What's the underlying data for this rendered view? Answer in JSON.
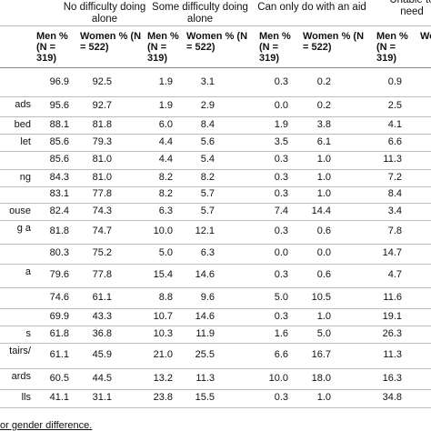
{
  "table": {
    "groups": [
      "No difficulty doing alone",
      "Some difficulty doing alone",
      "Can only do with an aid",
      "Unable to\nneed"
    ],
    "subheaders": [
      "Men % (N = 319)",
      "Women % (N = 522)",
      "Men % (N = 319)",
      "Women % (N = 522)",
      "Men % (N = 319)",
      "Women % (N = 522)",
      "Men % (N = 319)",
      "Wo"
    ],
    "rows": [
      {
        "label": "",
        "cells": [
          "96.9",
          "92.5",
          "1.9",
          "3.1",
          "0.3",
          "0.2",
          "0.9"
        ]
      },
      {
        "label": "ads",
        "cells": [
          "95.6",
          "92.7",
          "1.9",
          "2.9",
          "0.0",
          "0.2",
          "2.5"
        ]
      },
      {
        "label": "bed",
        "cells": [
          "88.1",
          "81.8",
          "6.0",
          "8.4",
          "1.9",
          "3.8",
          "4.1"
        ]
      },
      {
        "label": "let",
        "cells": [
          "85.6",
          "79.3",
          "4.4",
          "5.6",
          "3.5",
          "6.1",
          "6.6"
        ]
      },
      {
        "label": "",
        "cells": [
          "85.6",
          "81.0",
          "4.4",
          "5.4",
          "0.3",
          "1.0",
          "11.3"
        ]
      },
      {
        "label": "ng",
        "cells": [
          "84.3",
          "81.0",
          "8.2",
          "8.2",
          "0.3",
          "1.0",
          "7.2"
        ]
      },
      {
        "label": "",
        "cells": [
          "83.1",
          "77.8",
          "8.2",
          "5.7",
          "0.3",
          "1.0",
          "8.4"
        ]
      },
      {
        "label": "ouse",
        "cells": [
          "82.4",
          "74.3",
          "6.3",
          "5.7",
          "7.4",
          "14.4",
          "3.4"
        ]
      },
      {
        "label": "g a",
        "cells": [
          "81.8",
          "74.7",
          "10.0",
          "12.1",
          "0.3",
          "0.6",
          "7.8"
        ]
      },
      {
        "label": "",
        "cells": [
          "80.3",
          "75.2",
          "5.0",
          "6.3",
          "0.0",
          "0.0",
          "14.7"
        ]
      },
      {
        "label": "a",
        "cells": [
          "79.6",
          "77.8",
          "15.4",
          "14.6",
          "0.3",
          "0.6",
          "4.7"
        ]
      },
      {
        "label": "",
        "cells": [
          "74.6",
          "61.1",
          "8.8",
          "9.6",
          "5.0",
          "10.5",
          "11.6"
        ]
      },
      {
        "label": "",
        "cells": [
          "69.9",
          "43.3",
          "10.7",
          "14.6",
          "0.3",
          "1.0",
          "19.1"
        ]
      },
      {
        "label": "s",
        "cells": [
          "61.8",
          "36.8",
          "10.3",
          "11.9",
          "1.6",
          "5.0",
          "26.3"
        ]
      },
      {
        "label": "tairs/",
        "cells": [
          "61.1",
          "45.9",
          "21.0",
          "25.5",
          "6.6",
          "16.7",
          "11.3"
        ]
      },
      {
        "label": "ards",
        "cells": [
          "60.5",
          "44.5",
          "13.2",
          "11.3",
          "10.0",
          "18.0",
          "16.3"
        ]
      },
      {
        "label": "lls",
        "cells": [
          "41.1",
          "31.1",
          "23.8",
          "15.5",
          "0.3",
          "1.0",
          "34.8"
        ]
      }
    ],
    "footnote": "or gender difference."
  }
}
